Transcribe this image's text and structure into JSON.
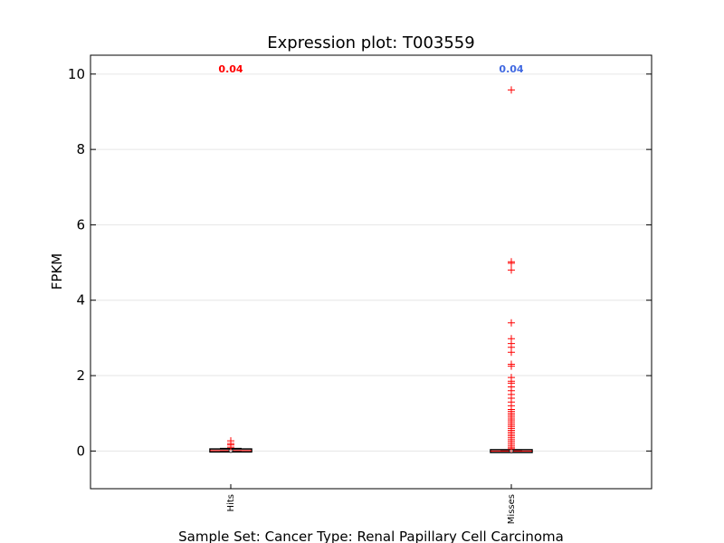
{
  "chart_data": {
    "type": "box",
    "title": "Expression plot: T003559",
    "ylabel": "FPKM",
    "xlabel": "Sample Set: Cancer Type: Renal Papillary Cell Carcinoma",
    "ylim": [
      -1,
      10.5
    ],
    "yticks": [
      0,
      2,
      4,
      6,
      8,
      10
    ],
    "grid": true,
    "categories": [
      "Hits",
      "Misses"
    ],
    "annotations": [
      {
        "category": "Hits",
        "text": "0.04",
        "color": "#ff0000"
      },
      {
        "category": "Misses",
        "text": "0.04",
        "color": "#4169e1"
      }
    ],
    "series": [
      {
        "category": "Hits",
        "q1": 0.0,
        "median": 0.01,
        "q3": 0.03,
        "whisker_low": 0.0,
        "whisker_high": 0.07,
        "outliers": [
          0.1,
          0.16,
          0.2,
          0.27
        ]
      },
      {
        "category": "Misses",
        "q1": 0.0,
        "median": 0.0,
        "q3": 0.01,
        "whisker_low": 0.0,
        "whisker_high": 0.03,
        "outliers": [
          9.58,
          5.02,
          4.98,
          4.8,
          3.4,
          2.98,
          2.85,
          2.75,
          2.62,
          2.3,
          2.25,
          1.95,
          1.85,
          1.8,
          1.7,
          1.6,
          1.5,
          1.4,
          1.3,
          1.2,
          1.1,
          1.05,
          1.0,
          0.95,
          0.9,
          0.85,
          0.8,
          0.75,
          0.7,
          0.65,
          0.6,
          0.55,
          0.5,
          0.45,
          0.4,
          0.35,
          0.3,
          0.25,
          0.2,
          0.15,
          0.1,
          0.06
        ]
      }
    ],
    "colors": {
      "box": "#000000",
      "median": "#ff0000",
      "outlier": "#ff0000",
      "grid": "#e6e6e6"
    }
  }
}
